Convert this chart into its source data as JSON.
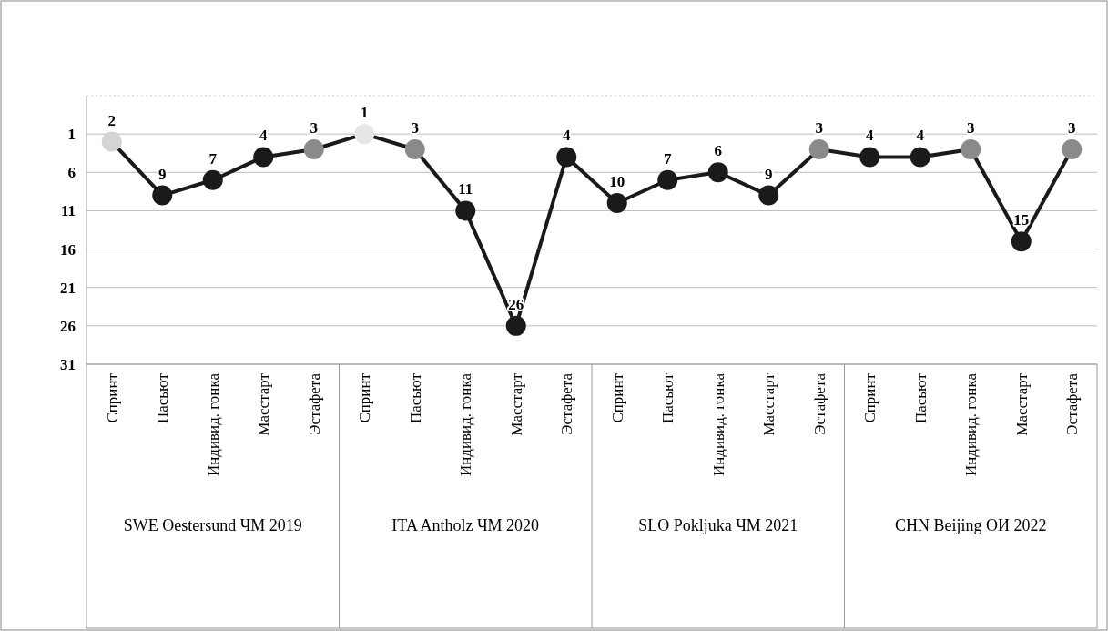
{
  "chart_data": {
    "type": "line",
    "categories": [
      "Спринт",
      "Пасьют",
      "Индивид. гонка",
      "Масстарт",
      "Эстафета",
      "Спринт",
      "Пасьют",
      "Индивид. гонка",
      "Масстарт",
      "Эстафета",
      "Спринт",
      "Пасьют",
      "Индивид. гонка",
      "Масстарт",
      "Эстафета",
      "Спринт",
      "Пасьют",
      "Индивид. гонка",
      "Масстарт",
      "Эстафета"
    ],
    "series": [
      {
        "color": "#1a1a1a",
        "values": [
          2,
          9,
          7,
          4,
          3,
          1,
          3,
          11,
          26,
          4,
          10,
          7,
          6,
          9,
          3,
          4,
          4,
          3,
          15,
          3
        ],
        "colors": [
          "#d4d4d4",
          "#1a1a1a",
          "#1a1a1a",
          "#1a1a1a",
          "#8a8a8a",
          "#e6e6e6",
          "#8a8a8a",
          "#1a1a1a",
          "#1a1a1a",
          "#1a1a1a",
          "#1a1a1a",
          "#1a1a1a",
          "#1a1a1a",
          "#1a1a1a",
          "#8a8a8a",
          "#1a1a1a",
          "#1a1a1a",
          "#8a8a8a",
          "#1a1a1a",
          "#8a8a8a"
        ]
      }
    ],
    "ylim": [
      31,
      -4
    ],
    "yticks": [
      1,
      6,
      11,
      16,
      21,
      26,
      31
    ],
    "grid": "y",
    "marker": "circle",
    "data_labels": true,
    "annotations": [
      "SWE Oestersund ЧМ 2019",
      "ITA Antholz ЧМ 2020",
      "SLO Pokljuka ЧМ 2021",
      "CHN Beijing ОИ 2022"
    ]
  }
}
